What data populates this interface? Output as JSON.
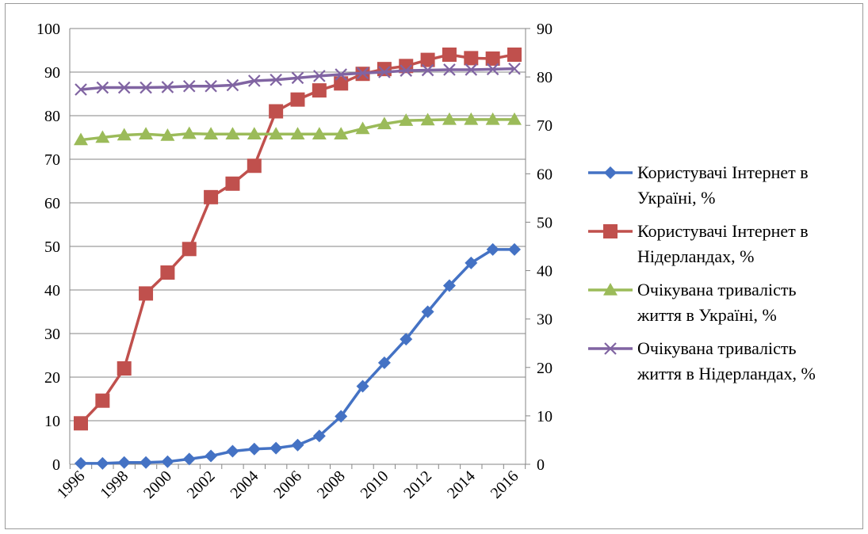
{
  "chart_data": {
    "type": "line",
    "x": [
      1996,
      1997,
      1998,
      1999,
      2000,
      2001,
      2002,
      2003,
      2004,
      2005,
      2006,
      2007,
      2008,
      2009,
      2010,
      2011,
      2012,
      2013,
      2014,
      2015,
      2016
    ],
    "x_tick_labels": [
      "1996",
      "1998",
      "2000",
      "2002",
      "2004",
      "2006",
      "2008",
      "2010",
      "2012",
      "2014",
      "2016"
    ],
    "y_left": {
      "range": [
        0,
        100
      ],
      "ticks": [
        "0",
        "10",
        "20",
        "30",
        "40",
        "50",
        "60",
        "70",
        "80",
        "90",
        "100"
      ]
    },
    "y_right": {
      "range": [
        0,
        90
      ],
      "ticks": [
        "0",
        "10",
        "20",
        "30",
        "40",
        "50",
        "60",
        "70",
        "80",
        "90"
      ]
    },
    "grid": "horizontal-left-axis",
    "legend_position": "right",
    "series": [
      {
        "name": "Користувачі Інтернет в Україні, %",
        "legend_lines": [
          "Користувачі Інтернет в",
          "Україні, %"
        ],
        "axis": "left",
        "color": "#4472C4",
        "marker": "diamond",
        "values": [
          0.2,
          0.2,
          0.4,
          0.4,
          0.6,
          1.2,
          1.9,
          3.0,
          3.5,
          3.7,
          4.4,
          6.5,
          11.0,
          17.9,
          23.3,
          28.7,
          35.0,
          41.0,
          46.2,
          49.3,
          49.3
        ]
      },
      {
        "name": "Користувачі Інтернет в Нідерландах, %",
        "legend_lines": [
          "Користувачі Інтернет в",
          "Нідерландах, %"
        ],
        "axis": "left",
        "color": "#C0504D",
        "marker": "square",
        "values": [
          9.4,
          14.6,
          22.0,
          39.2,
          44.0,
          49.4,
          61.3,
          64.4,
          68.5,
          81.0,
          83.7,
          85.8,
          87.4,
          89.6,
          90.7,
          91.4,
          92.8,
          94.0,
          93.2,
          93.1,
          94.0
        ]
      },
      {
        "name": "Очікувана тривалість життя в Україні, %",
        "legend_lines": [
          "Очікувана тривалість",
          "життя в Україні, %"
        ],
        "axis": "right",
        "color": "#9BBB59",
        "marker": "triangle",
        "values": [
          67.0,
          67.5,
          68.0,
          68.2,
          67.9,
          68.3,
          68.2,
          68.2,
          68.2,
          68.2,
          68.2,
          68.2,
          68.2,
          69.3,
          70.3,
          71.0,
          71.1,
          71.2,
          71.2,
          71.2,
          71.2
        ]
      },
      {
        "name": "Очікувана тривалість життя в Нідерландах, %",
        "legend_lines": [
          "Очікувана тривалість",
          "життя в Нідерландах, %"
        ],
        "axis": "right",
        "color": "#8064A2",
        "marker": "x",
        "values": [
          77.4,
          77.8,
          77.8,
          77.8,
          77.9,
          78.1,
          78.1,
          78.3,
          79.2,
          79.4,
          79.8,
          80.2,
          80.5,
          80.8,
          81.0,
          81.3,
          81.4,
          81.5,
          81.5,
          81.6,
          81.7
        ]
      }
    ]
  }
}
